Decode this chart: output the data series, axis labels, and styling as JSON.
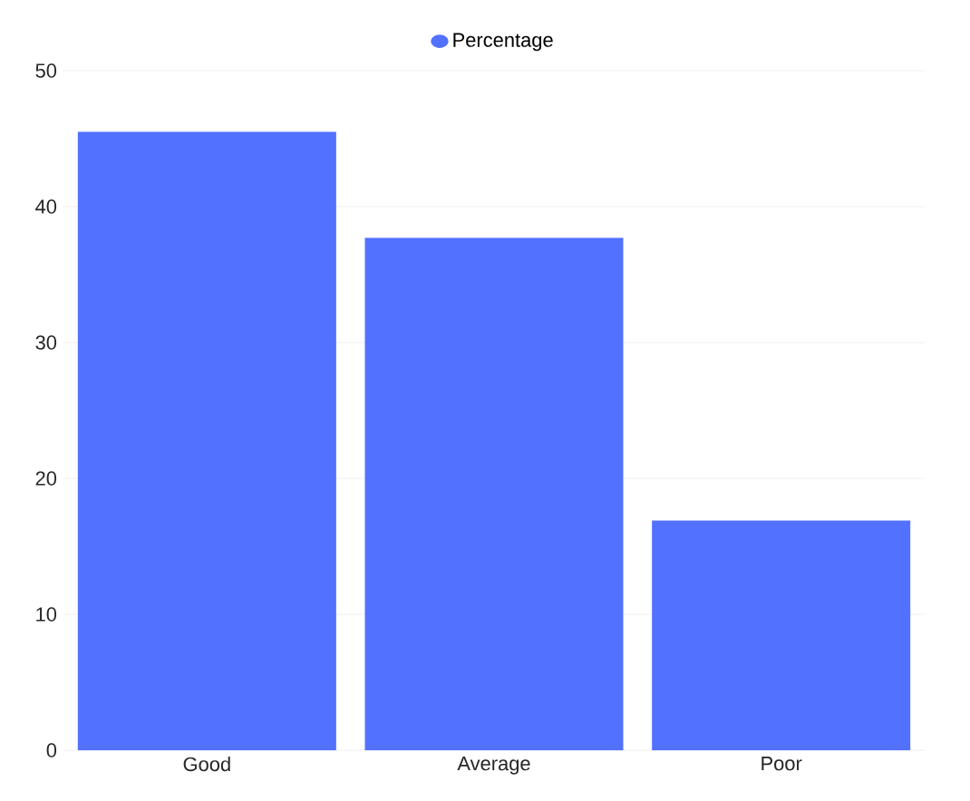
{
  "chart_data": {
    "type": "bar",
    "categories": [
      "Good",
      "Average",
      "Poor"
    ],
    "series": [
      {
        "name": "Percentage",
        "color": "#5271ff",
        "values": [
          45.5,
          37.7,
          16.9
        ]
      }
    ],
    "ylim": [
      0,
      50
    ],
    "yticks": [
      0,
      10,
      20,
      30,
      40,
      50
    ],
    "grid": "y",
    "legend": "top"
  }
}
